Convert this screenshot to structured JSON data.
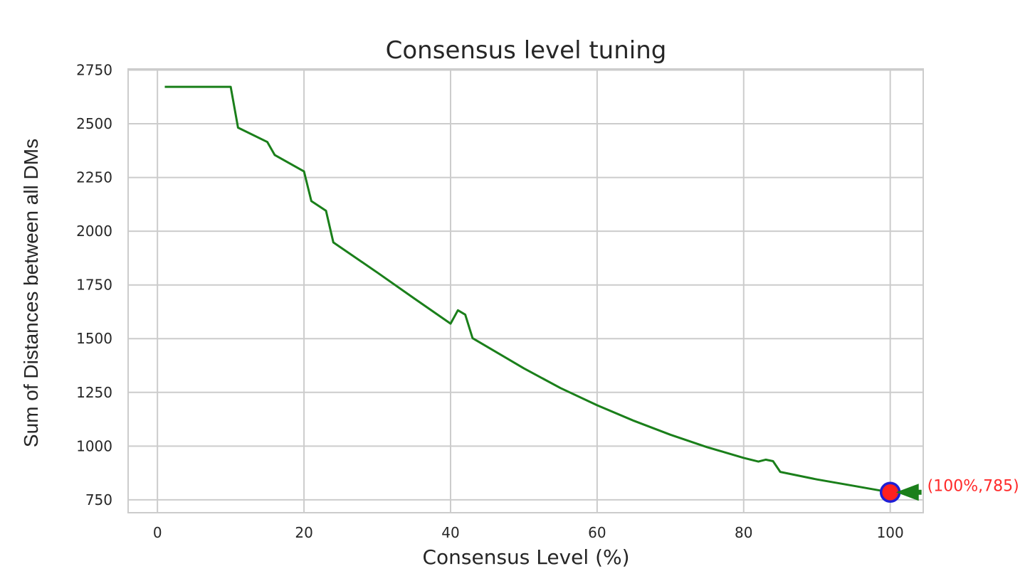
{
  "chart_data": {
    "type": "line",
    "title": "Consensus level tuning",
    "xlabel": "Consensus Level (%)",
    "ylabel": "Sum of Distances between all DMs",
    "xlim": [
      -4,
      104.5
    ],
    "ylim": [
      690,
      2755
    ],
    "xticks": [
      0,
      20,
      40,
      60,
      80,
      100
    ],
    "yticks": [
      750,
      1000,
      1250,
      1500,
      1750,
      2000,
      2250,
      2500,
      2750
    ],
    "grid": true,
    "series": [
      {
        "color": "#1a7f1a",
        "x": [
          1,
          10,
          11,
          15,
          16,
          20,
          21,
          23,
          24,
          30,
          35,
          40,
          41,
          42,
          43,
          50,
          55,
          60,
          65,
          70,
          75,
          80,
          82,
          83,
          84,
          85,
          90,
          95,
          100
        ],
        "y": [
          2672,
          2672,
          2482,
          2415,
          2355,
          2278,
          2140,
          2095,
          1948,
          1808,
          1688,
          1570,
          1632,
          1612,
          1502,
          1362,
          1270,
          1190,
          1118,
          1053,
          995,
          945,
          928,
          937,
          930,
          880,
          845,
          815,
          785
        ]
      }
    ],
    "highlight_point": {
      "x": 100,
      "y": 785,
      "fill": "#ff2020",
      "edge": "#1f1fd6"
    },
    "annotation": {
      "text": "(100%,785)",
      "color": "#ff2a2a",
      "arrow_color": "#1a7f1a"
    }
  }
}
